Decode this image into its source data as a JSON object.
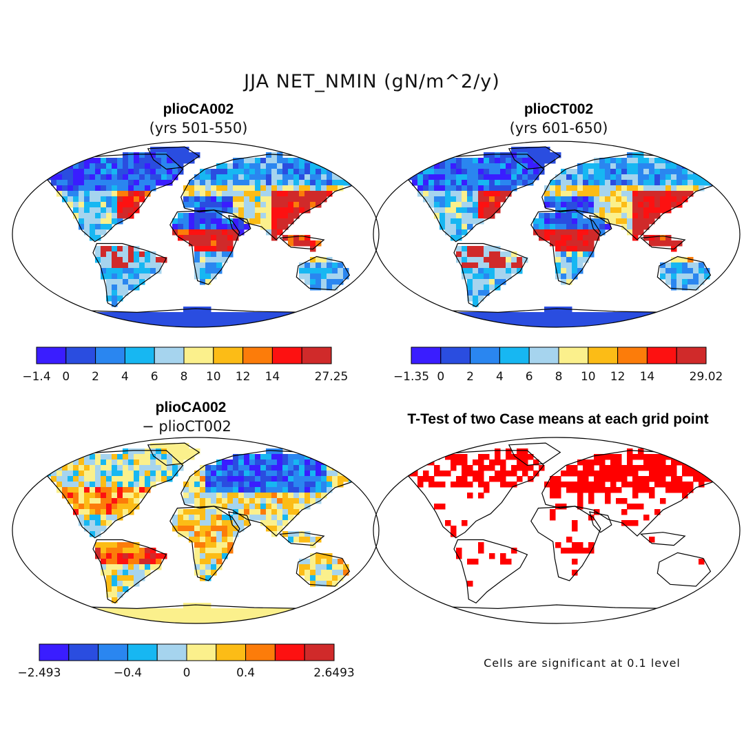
{
  "figure": {
    "title": "JJA NET_NMIN (gN/m^2/y)"
  },
  "panels": [
    {
      "id": "caseA",
      "title": "plioCA002",
      "subtitle": "(yrs 501-550)",
      "field": "A",
      "colorbar": {
        "colors": [
          "#3a1dff",
          "#2a4de0",
          "#2a86f0",
          "#17b7f2",
          "#a6d4ee",
          "#fbf08c",
          "#fcbc16",
          "#fc7c0a",
          "#fd1111",
          "#d02a2a"
        ],
        "ticks": [
          {
            "label": "−1.4",
            "boundary": 0
          },
          {
            "label": "0",
            "boundary": 1
          },
          {
            "label": "2",
            "boundary": 2
          },
          {
            "label": "4",
            "boundary": 3
          },
          {
            "label": "6",
            "boundary": 4
          },
          {
            "label": "8",
            "boundary": 5
          },
          {
            "label": "10",
            "boundary": 6
          },
          {
            "label": "12",
            "boundary": 7
          },
          {
            "label": "14",
            "boundary": 8
          },
          {
            "label": "27.25",
            "boundary": 10
          }
        ]
      }
    },
    {
      "id": "caseB",
      "title": "plioCT002",
      "subtitle": "(yrs 601-650)",
      "field": "B",
      "colorbar": {
        "colors": [
          "#3a1dff",
          "#2a4de0",
          "#2a86f0",
          "#17b7f2",
          "#a6d4ee",
          "#fbf08c",
          "#fcbc16",
          "#fc7c0a",
          "#fd1111",
          "#d02a2a"
        ],
        "ticks": [
          {
            "label": "−1.35",
            "boundary": 0
          },
          {
            "label": "0",
            "boundary": 1
          },
          {
            "label": "2",
            "boundary": 2
          },
          {
            "label": "4",
            "boundary": 3
          },
          {
            "label": "6",
            "boundary": 4
          },
          {
            "label": "8",
            "boundary": 5
          },
          {
            "label": "10",
            "boundary": 6
          },
          {
            "label": "12",
            "boundary": 7
          },
          {
            "label": "14",
            "boundary": 8
          },
          {
            "label": "29.02",
            "boundary": 10
          }
        ]
      }
    },
    {
      "id": "diff",
      "title": "plioCA002",
      "subtitle": "− plioCT002",
      "field": "D",
      "colorbar": {
        "colors": [
          "#3a1dff",
          "#2a4de0",
          "#2a86f0",
          "#17b7f2",
          "#a6d4ee",
          "#fbf08c",
          "#fcbc16",
          "#fc7c0a",
          "#fd1111",
          "#d02a2a"
        ],
        "ticks": [
          {
            "label": "−2.493",
            "boundary": 0
          },
          {
            "label": "−0.4",
            "boundary": 3
          },
          {
            "label": "0",
            "boundary": 5
          },
          {
            "label": "0.4",
            "boundary": 7
          },
          {
            "label": "2.6493",
            "boundary": 10
          }
        ]
      }
    },
    {
      "id": "ttest",
      "title": "T-Test of two Case means at each grid point",
      "subtitle": "",
      "field": "T",
      "significant_color": "#ff0000",
      "note": "Cells are significant at 0.1 level"
    }
  ]
}
